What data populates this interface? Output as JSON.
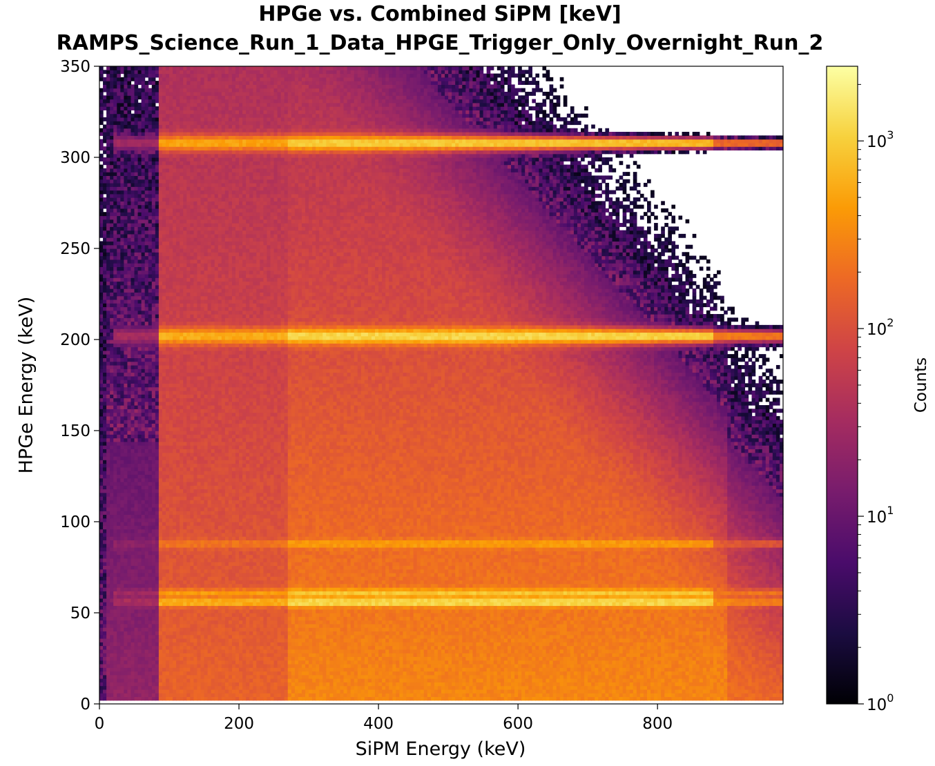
{
  "chart_data": {
    "type": "heatmap",
    "title": "HPGe vs. Combined SiPM  [keV]",
    "subtitle": "RAMPS_Science_Run_1_Data_HPGE_Trigger_Only_Overnight_Run_2",
    "xlabel": "SiPM Energy (keV)",
    "ylabel": "HPGe Energy (keV)",
    "xlim": [
      0,
      980
    ],
    "ylim": [
      0,
      350
    ],
    "x_ticks": [
      "0",
      "200",
      "400",
      "600",
      "800"
    ],
    "y_ticks": [
      "0",
      "50",
      "100",
      "150",
      "200",
      "250",
      "300",
      "350"
    ],
    "colorbar": {
      "label": "Counts",
      "scale": "log",
      "range": [
        1,
        2500
      ],
      "ticks": [
        {
          "value": 1,
          "base": "10",
          "exp": "0"
        },
        {
          "value": 10,
          "base": "10",
          "exp": "1"
        },
        {
          "value": 100,
          "base": "10",
          "exp": "2"
        },
        {
          "value": 1000,
          "base": "10",
          "exp": "3"
        }
      ],
      "colormap": "inferno"
    },
    "horizontal_bands_hpge_keV": [
      {
        "hpge": 308,
        "peak_counts": 1100
      },
      {
        "hpge": 202,
        "peak_counts": 1300
      },
      {
        "hpge": 88,
        "peak_counts": 500
      },
      {
        "hpge": 61,
        "peak_counts": 900
      },
      {
        "hpge": 56,
        "peak_counts": 1600
      }
    ],
    "features": {
      "low_sipm_cutoff_keV": 85,
      "brighter_region_from_sipm_keV": 270
    }
  },
  "colors": {
    "inferno_stops": [
      "#000004",
      "#1b0c41",
      "#4a0c6b",
      "#781c6d",
      "#a52c60",
      "#cf4446",
      "#ed6925",
      "#fb9b06",
      "#f7d13d",
      "#fcffa4"
    ]
  }
}
